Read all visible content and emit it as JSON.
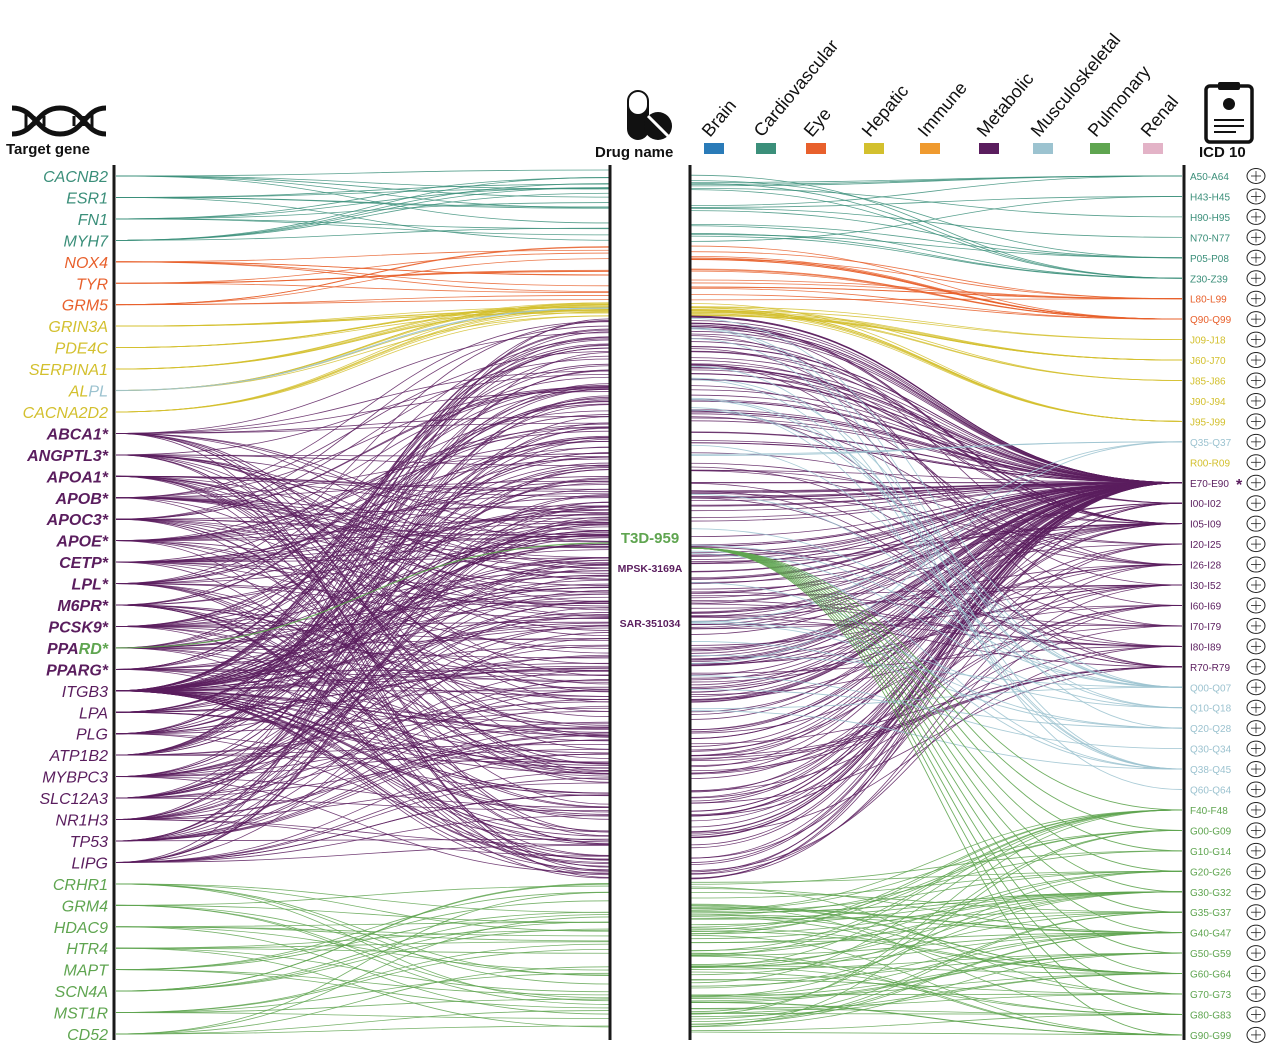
{
  "headers": {
    "target_gene": "Target gene",
    "drug_name": "Drug name",
    "icd10": "ICD 10"
  },
  "icons": {
    "gene": "dna-helix-icon",
    "drug": "pill-capsule-icon",
    "icd": "clipboard-report-icon"
  },
  "categories": [
    {
      "label": "Brain",
      "color": "#2a7bb8"
    },
    {
      "label": "Cardiovascular",
      "color": "#3b8f7a"
    },
    {
      "label": "Eye",
      "color": "#e8602c"
    },
    {
      "label": "Hepatic",
      "color": "#d3c02e"
    },
    {
      "label": "Immune",
      "color": "#ef9a2f"
    },
    {
      "label": "Metabolic",
      "color": "#5a1d5e"
    },
    {
      "label": "Musculoskeletal",
      "color": "#9cc3d0"
    },
    {
      "label": "Pulmonary",
      "color": "#5fa550"
    },
    {
      "label": "Renal",
      "color": "#e3b3c7"
    }
  ],
  "genes": [
    {
      "label": "CACNB2",
      "cat": "Cardiovascular"
    },
    {
      "label": "ESR1",
      "cat": "Cardiovascular"
    },
    {
      "label": "FN1",
      "cat": "Cardiovascular"
    },
    {
      "label": "MYH7",
      "cat": "Cardiovascular"
    },
    {
      "label": "NOX4",
      "cat": "Eye"
    },
    {
      "label": "TYR",
      "cat": "Eye"
    },
    {
      "label": "GRM5",
      "cat": "Eye"
    },
    {
      "label": "GRIN3A",
      "cat": "Hepatic"
    },
    {
      "label": "PDE4C",
      "cat": "Hepatic"
    },
    {
      "label": "SERPINA1",
      "cat": "Hepatic"
    },
    {
      "label": "AL",
      "suffix": "PL",
      "cat": "Hepatic",
      "suffix_cat": "Musculoskeletal"
    },
    {
      "label": "CACNA2D2",
      "cat": "Hepatic"
    },
    {
      "label": "ABCA1*",
      "cat": "Metabolic",
      "bold": true
    },
    {
      "label": "ANGPTL3*",
      "cat": "Metabolic",
      "bold": true
    },
    {
      "label": "APOA1*",
      "cat": "Metabolic",
      "bold": true
    },
    {
      "label": "APOB*",
      "cat": "Metabolic",
      "bold": true
    },
    {
      "label": "APOC3*",
      "cat": "Metabolic",
      "bold": true
    },
    {
      "label": "APOE*",
      "cat": "Metabolic",
      "bold": true
    },
    {
      "label": "CETP*",
      "cat": "Metabolic",
      "bold": true
    },
    {
      "label": "LPL*",
      "cat": "Metabolic",
      "bold": true
    },
    {
      "label": "M6PR*",
      "cat": "Metabolic",
      "bold": true
    },
    {
      "label": "PCSK9*",
      "cat": "Metabolic",
      "bold": true
    },
    {
      "label": "PPA",
      "suffix": "RD*",
      "cat": "Metabolic",
      "suffix_cat": "Pulmonary",
      "bold": true
    },
    {
      "label": "PPARG*",
      "cat": "Metabolic",
      "bold": true
    },
    {
      "label": "ITGB3",
      "cat": "Metabolic"
    },
    {
      "label": "LPA",
      "cat": "Metabolic"
    },
    {
      "label": "PLG",
      "cat": "Metabolic"
    },
    {
      "label": "ATP1B2",
      "cat": "Metabolic"
    },
    {
      "label": "MYBPC3",
      "cat": "Metabolic"
    },
    {
      "label": "SLC12A3",
      "cat": "Metabolic"
    },
    {
      "label": "NR1H3",
      "cat": "Metabolic"
    },
    {
      "label": "TP53",
      "cat": "Metabolic"
    },
    {
      "label": "LIPG",
      "cat": "Metabolic"
    },
    {
      "label": "CRHR1",
      "cat": "Pulmonary"
    },
    {
      "label": "GRM4",
      "cat": "Pulmonary"
    },
    {
      "label": "HDAC9",
      "cat": "Pulmonary"
    },
    {
      "label": "HTR4",
      "cat": "Pulmonary"
    },
    {
      "label": "MAPT",
      "cat": "Pulmonary"
    },
    {
      "label": "SCN4A",
      "cat": "Pulmonary"
    },
    {
      "label": "MST1R",
      "cat": "Pulmonary"
    },
    {
      "label": "CD52",
      "cat": "Pulmonary"
    }
  ],
  "drugs": [
    {
      "label": "T3D-959",
      "cat": "Pulmonary",
      "big": true
    },
    {
      "label": "MPSK-3169A",
      "cat": "Metabolic"
    },
    {
      "label": "SAR-351034",
      "cat": "Metabolic"
    }
  ],
  "icd_codes": [
    {
      "label": "A50-A64",
      "cat": "Cardiovascular",
      "icon": "uterus-icon"
    },
    {
      "label": "H43-H45",
      "cat": "Cardiovascular",
      "icon": "eye-icon"
    },
    {
      "label": "H90-H95",
      "cat": "Cardiovascular",
      "icon": "ear-icon"
    },
    {
      "label": "N70-N77",
      "cat": "Cardiovascular",
      "icon": "uterus-icon"
    },
    {
      "label": "P05-P08",
      "cat": "Cardiovascular",
      "icon": "fetus-icon"
    },
    {
      "label": "Z30-Z39",
      "cat": "Cardiovascular",
      "icon": "uterus-icon"
    },
    {
      "label": "L80-L99",
      "cat": "Eye",
      "icon": "skin-icon"
    },
    {
      "label": "Q90-Q99",
      "cat": "Eye",
      "icon": "dna-icon"
    },
    {
      "label": "J09-J18",
      "cat": "Hepatic",
      "icon": "lungs-icon"
    },
    {
      "label": "J60-J70",
      "cat": "Hepatic",
      "icon": "lungs-icon"
    },
    {
      "label": "J85-J86",
      "cat": "Hepatic",
      "icon": "lungs-icon"
    },
    {
      "label": "J90-J94",
      "cat": "Hepatic",
      "icon": "lungs-icon"
    },
    {
      "label": "J95-J99",
      "cat": "Hepatic",
      "icon": "lungs-icon"
    },
    {
      "label": "Q35-Q37",
      "cat": "Musculoskeletal",
      "icon": "mouth-icon"
    },
    {
      "label": "R00-R09",
      "cat": "Hepatic",
      "icon": "chest-icon"
    },
    {
      "label": "E70-E90",
      "cat": "Metabolic",
      "icon": "organ-icon",
      "mark": "*"
    },
    {
      "label": "I00-I02",
      "cat": "Metabolic",
      "icon": "heart-icon"
    },
    {
      "label": "I05-I09",
      "cat": "Metabolic",
      "icon": "heart-icon"
    },
    {
      "label": "I20-I25",
      "cat": "Metabolic",
      "icon": "heart-icon"
    },
    {
      "label": "I26-I28",
      "cat": "Metabolic",
      "icon": "lungs-icon"
    },
    {
      "label": "I30-I52",
      "cat": "Metabolic",
      "icon": "heart-icon"
    },
    {
      "label": "I60-I69",
      "cat": "Metabolic",
      "icon": "brain-icon"
    },
    {
      "label": "I70-I79",
      "cat": "Metabolic",
      "icon": "vessel-icon"
    },
    {
      "label": "I80-I89",
      "cat": "Metabolic",
      "icon": "vessel-icon"
    },
    {
      "label": "R70-R79",
      "cat": "Metabolic",
      "icon": "vessel-icon"
    },
    {
      "label": "Q00-Q07",
      "cat": "Musculoskeletal",
      "icon": "nerve-icon"
    },
    {
      "label": "Q10-Q18",
      "cat": "Musculoskeletal",
      "icon": "eye-ear-icon"
    },
    {
      "label": "Q20-Q28",
      "cat": "Musculoskeletal",
      "icon": "heart-icon"
    },
    {
      "label": "Q30-Q34",
      "cat": "Musculoskeletal",
      "icon": "lungs-icon"
    },
    {
      "label": "Q38-Q45",
      "cat": "Musculoskeletal",
      "icon": "intestine-icon"
    },
    {
      "label": "Q60-Q64",
      "cat": "Musculoskeletal",
      "icon": "kidney-icon"
    },
    {
      "label": "F40-F48",
      "cat": "Pulmonary",
      "icon": "nerve-icon"
    },
    {
      "label": "G00-G09",
      "cat": "Pulmonary",
      "icon": "nerve-icon"
    },
    {
      "label": "G10-G14",
      "cat": "Pulmonary",
      "icon": "nerve-icon"
    },
    {
      "label": "G20-G26",
      "cat": "Pulmonary",
      "icon": "nerve-icon"
    },
    {
      "label": "G30-G32",
      "cat": "Pulmonary",
      "icon": "nerve-icon"
    },
    {
      "label": "G35-G37",
      "cat": "Pulmonary",
      "icon": "nerve-icon"
    },
    {
      "label": "G40-G47",
      "cat": "Pulmonary",
      "icon": "nerve-icon"
    },
    {
      "label": "G50-G59",
      "cat": "Pulmonary",
      "icon": "nerve-icon"
    },
    {
      "label": "G60-G64",
      "cat": "Pulmonary",
      "icon": "nerve-icon"
    },
    {
      "label": "G70-G73",
      "cat": "Pulmonary",
      "icon": "nerve-icon"
    },
    {
      "label": "G80-G83",
      "cat": "Pulmonary",
      "icon": "nerve-icon"
    },
    {
      "label": "G90-G99",
      "cat": "Pulmonary",
      "icon": "nerve-icon"
    }
  ]
}
